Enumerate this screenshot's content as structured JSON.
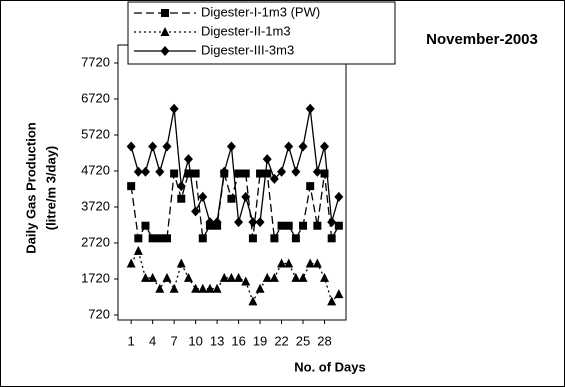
{
  "chart_data": {
    "type": "line",
    "title": "November-2003",
    "x_label": "No. of Days",
    "y_label": [
      "Daily Gas Production",
      "(litre/m 3/day)"
    ],
    "x": [
      1,
      2,
      3,
      4,
      5,
      6,
      7,
      8,
      9,
      10,
      11,
      12,
      13,
      14,
      15,
      16,
      17,
      18,
      19,
      20,
      21,
      22,
      23,
      24,
      25,
      26,
      27,
      28,
      29,
      30
    ],
    "xlim": [
      0,
      31
    ],
    "xticks": [
      1,
      4,
      7,
      10,
      13,
      16,
      19,
      22,
      25,
      28
    ],
    "ylim": [
      720,
      7720
    ],
    "yticks": [
      720,
      1720,
      2720,
      3720,
      4720,
      5720,
      6720,
      7720
    ],
    "legend": "upper left",
    "series": [
      {
        "name": "Digester-I-1m3 (PW)",
        "color": "#000000",
        "dash": "dashed",
        "marker": "square",
        "values": [
          4300,
          2850,
          3200,
          2850,
          2850,
          2850,
          4650,
          3950,
          4650,
          4650,
          2850,
          3200,
          3200,
          4650,
          3950,
          4650,
          4650,
          2850,
          4650,
          4650,
          2850,
          3200,
          3200,
          2850,
          3200,
          4300,
          3200,
          4650,
          2850,
          3200
        ]
      },
      {
        "name": "Digester-II-1m3",
        "color": "#000000",
        "dash": "dotted",
        "marker": "triangle",
        "values": [
          2150,
          2500,
          1750,
          1750,
          1450,
          1750,
          1450,
          2150,
          1750,
          1450,
          1450,
          1450,
          1450,
          1750,
          1750,
          1750,
          1650,
          1100,
          1450,
          1750,
          1750,
          2150,
          2150,
          1750,
          1750,
          2150,
          2150,
          1750,
          1100,
          1300
        ]
      },
      {
        "name": "Digester-III-3m3",
        "color": "#000000",
        "dash": "solid",
        "marker": "diamond",
        "values": [
          5400,
          4700,
          4700,
          5400,
          4700,
          5400,
          6450,
          4300,
          5050,
          3600,
          4000,
          3300,
          3300,
          4700,
          5400,
          3300,
          4000,
          3300,
          3300,
          5050,
          4500,
          4700,
          5400,
          4700,
          5400,
          6450,
          4700,
          5400,
          3300,
          4000
        ]
      }
    ]
  }
}
